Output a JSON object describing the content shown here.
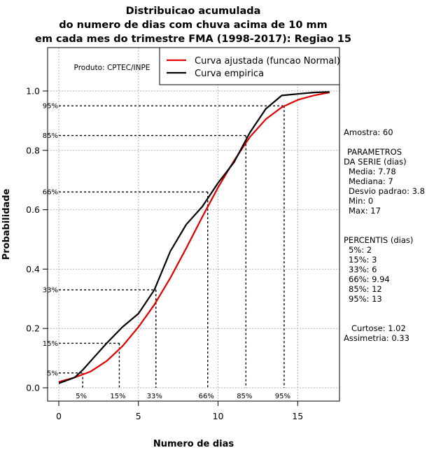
{
  "chart_data": {
    "type": "line",
    "title_lines": [
      "Distribuicao acumulada",
      "do numero de dias com chuva acima de 10 mm",
      "em cada mes do trimestre FMA (1998-2017): Regiao 15"
    ],
    "xlabel": "Numero de dias",
    "ylabel": "Probabilidade",
    "xlim": [
      -0.7,
      17.7
    ],
    "ylim": [
      -0.045,
      1.14
    ],
    "xticks": [
      0,
      5,
      10,
      15
    ],
    "yticks": [
      "0.0",
      "0.2",
      "0.4",
      "0.6",
      "0.8",
      "1.0"
    ],
    "grid": true,
    "credit": "Produto: CPTEC/INPE",
    "legend_position": "top-right",
    "series": [
      {
        "name": "Curva ajustada (funcao Normal)",
        "color": "#e00000",
        "x": [
          0,
          1,
          2,
          3,
          4,
          5,
          6,
          7,
          8,
          9,
          10,
          11,
          12,
          13,
          14,
          15,
          16,
          17
        ],
        "y": [
          0.02,
          0.035,
          0.055,
          0.09,
          0.14,
          0.205,
          0.28,
          0.37,
          0.47,
          0.575,
          0.675,
          0.765,
          0.845,
          0.905,
          0.945,
          0.97,
          0.985,
          0.995
        ]
      },
      {
        "name": "Curva empirica",
        "color": "#000000",
        "x": [
          0,
          1,
          1.5,
          2,
          2.5,
          3,
          4,
          5,
          6,
          7,
          8,
          9,
          10,
          11,
          12,
          13,
          14,
          15,
          16,
          17
        ],
        "y": [
          0.015,
          0.035,
          0.06,
          0.09,
          0.12,
          0.15,
          0.205,
          0.25,
          0.33,
          0.46,
          0.55,
          0.61,
          0.69,
          0.76,
          0.86,
          0.94,
          0.985,
          0.99,
          0.995,
          0.997
        ]
      }
    ],
    "percentile_markers": [
      {
        "label": "5%",
        "x": 1.5,
        "p": 0.05
      },
      {
        "label": "15%",
        "x": 3.8,
        "p": 0.15
      },
      {
        "label": "33%",
        "x": 6.1,
        "p": 0.33
      },
      {
        "label": "66%",
        "x": 9.35,
        "p": 0.66
      },
      {
        "label": "85%",
        "x": 11.75,
        "p": 0.85
      },
      {
        "label": "95%",
        "x": 14.15,
        "p": 0.95
      }
    ]
  },
  "stats": {
    "amostra": "Amostra: 60",
    "param_title_1": "PARAMETROS",
    "param_title_2": "DA SERIE (dias)",
    "media": "Media: 7.78",
    "mediana": "Mediana: 7",
    "desvio": "Desvio padrao: 3.8",
    "min": "Min: 0",
    "max": "Max: 17",
    "percentis_title": "PERCENTIS (dias)",
    "p5": "5%: 2",
    "p15": "15%: 3",
    "p33": "33%: 6",
    "p66": "66%: 9.94",
    "p85": "85%: 12",
    "p95": "95%: 13",
    "curtose": "Curtose: 1.02",
    "assimetria": "Assimetria: 0.33"
  }
}
